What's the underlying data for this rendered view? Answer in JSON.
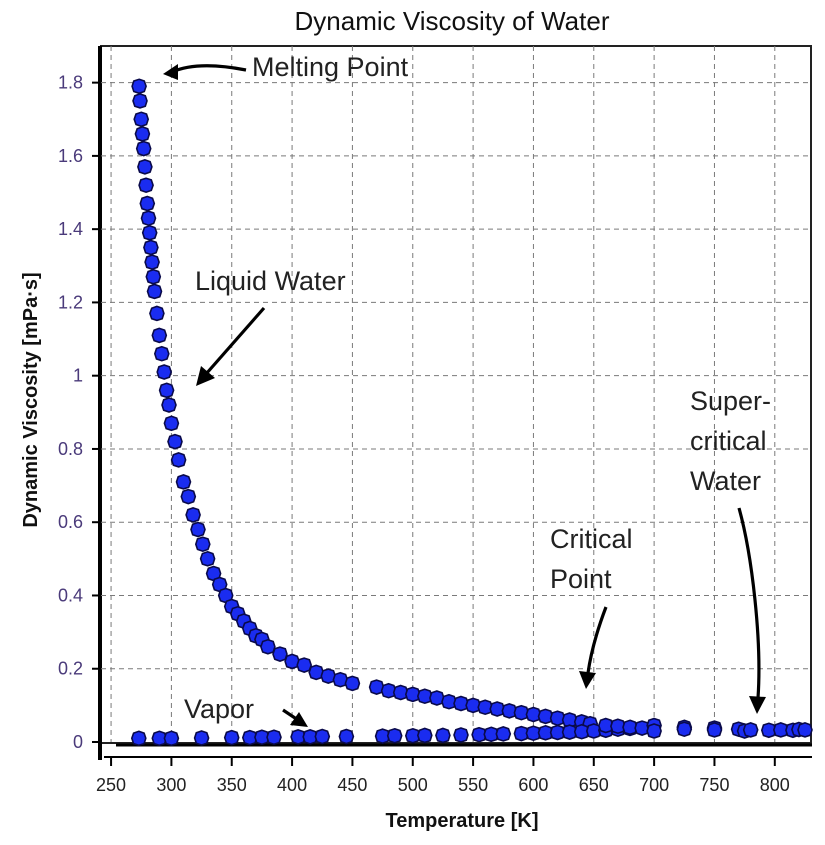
{
  "chart_data": {
    "type": "scatter",
    "title": "Dynamic Viscosity of Water",
    "xlabel": "Temperature [K]",
    "ylabel": "Dynamic Viscosity [mPa·s]",
    "xlim": [
      240,
      830
    ],
    "ylim": [
      0,
      1.9
    ],
    "x_ticks": [
      250,
      300,
      350,
      400,
      450,
      500,
      550,
      600,
      650,
      700,
      750,
      800
    ],
    "y_ticks": [
      0,
      0.2,
      0.4,
      0.6,
      0.8,
      1,
      1.2,
      1.4,
      1.6,
      1.8
    ],
    "y_tick_labels": [
      "0",
      "0.2",
      "0.4",
      "0.6",
      "0.8",
      "1",
      "1.2",
      "1.4",
      "1.6",
      "1.8"
    ],
    "grid": true,
    "marker_color": "#1a2cf0",
    "series": [
      {
        "name": "Liquid Water",
        "points": [
          [
            273.2,
            1.79
          ],
          [
            274,
            1.75
          ],
          [
            275,
            1.7
          ],
          [
            276,
            1.66
          ],
          [
            277,
            1.62
          ],
          [
            278,
            1.57
          ],
          [
            279,
            1.52
          ],
          [
            280,
            1.47
          ],
          [
            281,
            1.43
          ],
          [
            282,
            1.39
          ],
          [
            283,
            1.35
          ],
          [
            284,
            1.31
          ],
          [
            285,
            1.27
          ],
          [
            286,
            1.23
          ],
          [
            288,
            1.17
          ],
          [
            290,
            1.11
          ],
          [
            292,
            1.06
          ],
          [
            294,
            1.01
          ],
          [
            296,
            0.96
          ],
          [
            298,
            0.92
          ],
          [
            300,
            0.87
          ],
          [
            303,
            0.82
          ],
          [
            306,
            0.77
          ],
          [
            310,
            0.71
          ],
          [
            314,
            0.67
          ],
          [
            318,
            0.62
          ],
          [
            322,
            0.58
          ],
          [
            326,
            0.54
          ],
          [
            330,
            0.5
          ],
          [
            335,
            0.46
          ],
          [
            340,
            0.43
          ],
          [
            345,
            0.4
          ],
          [
            350,
            0.37
          ],
          [
            355,
            0.35
          ],
          [
            360,
            0.33
          ],
          [
            365,
            0.31
          ],
          [
            370,
            0.29
          ],
          [
            375,
            0.28
          ],
          [
            380,
            0.26
          ],
          [
            390,
            0.24
          ],
          [
            400,
            0.22
          ],
          [
            410,
            0.21
          ],
          [
            420,
            0.19
          ],
          [
            430,
            0.18
          ],
          [
            440,
            0.17
          ],
          [
            450,
            0.16
          ],
          [
            470,
            0.15
          ],
          [
            480,
            0.14
          ],
          [
            490,
            0.135
          ],
          [
            500,
            0.13
          ],
          [
            510,
            0.125
          ],
          [
            520,
            0.12
          ],
          [
            530,
            0.11
          ],
          [
            540,
            0.105
          ],
          [
            550,
            0.1
          ],
          [
            560,
            0.095
          ],
          [
            570,
            0.09
          ],
          [
            580,
            0.085
          ],
          [
            590,
            0.08
          ],
          [
            600,
            0.075
          ],
          [
            610,
            0.07
          ],
          [
            620,
            0.065
          ],
          [
            630,
            0.06
          ],
          [
            640,
            0.055
          ],
          [
            647,
            0.05
          ]
        ]
      },
      {
        "name": "Vapor",
        "points": [
          [
            273,
            0.01
          ],
          [
            290,
            0.01
          ],
          [
            300,
            0.01
          ],
          [
            325,
            0.011
          ],
          [
            350,
            0.012
          ],
          [
            365,
            0.012
          ],
          [
            375,
            0.013
          ],
          [
            385,
            0.013
          ],
          [
            405,
            0.014
          ],
          [
            415,
            0.014
          ],
          [
            425,
            0.015
          ],
          [
            445,
            0.015
          ],
          [
            475,
            0.016
          ],
          [
            485,
            0.017
          ],
          [
            500,
            0.017
          ],
          [
            510,
            0.018
          ],
          [
            525,
            0.018
          ],
          [
            540,
            0.019
          ],
          [
            555,
            0.02
          ],
          [
            565,
            0.021
          ],
          [
            575,
            0.022
          ],
          [
            590,
            0.023
          ],
          [
            600,
            0.024
          ],
          [
            610,
            0.025
          ],
          [
            620,
            0.026
          ],
          [
            630,
            0.027
          ],
          [
            640,
            0.028
          ],
          [
            650,
            0.03
          ],
          [
            660,
            0.032
          ],
          [
            670,
            0.035
          ],
          [
            680,
            0.037
          ]
        ]
      },
      {
        "name": "Super-critical Water",
        "points": [
          [
            660,
            0.045
          ],
          [
            670,
            0.043
          ],
          [
            680,
            0.04
          ],
          [
            690,
            0.038
          ],
          [
            700,
            0.045
          ],
          [
            700,
            0.03
          ],
          [
            725,
            0.04
          ],
          [
            725,
            0.035
          ],
          [
            750,
            0.038
          ],
          [
            750,
            0.033
          ],
          [
            770,
            0.035
          ],
          [
            775,
            0.03
          ],
          [
            780,
            0.033
          ],
          [
            795,
            0.032
          ],
          [
            805,
            0.033
          ],
          [
            815,
            0.032
          ],
          [
            820,
            0.034
          ],
          [
            825,
            0.033
          ]
        ]
      }
    ],
    "annotations": {
      "melting_point": "Melting Point",
      "liquid_water": "Liquid Water",
      "supercritical_line1": "Super-",
      "supercritical_line2": "critical",
      "supercritical_line3": "Water",
      "critical_line1": "Critical",
      "critical_line2": "Point",
      "vapor": "Vapor"
    }
  }
}
